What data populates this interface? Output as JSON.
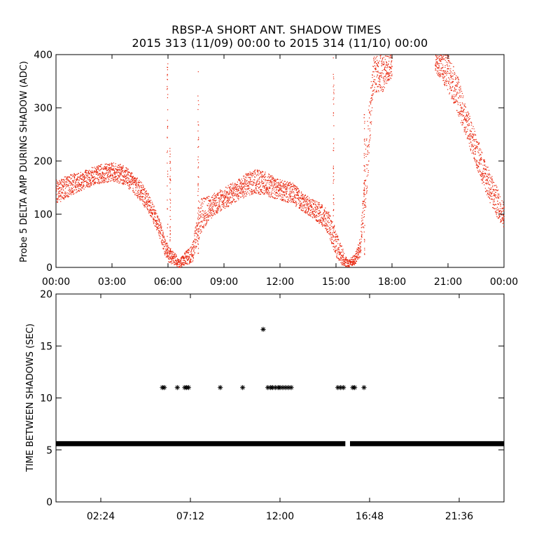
{
  "header": {
    "title": "RBSP-A SHORT ANT. SHADOW TIMES",
    "subtitle": "2015 313 (11/09) 00:00 to 2015 314 (11/10) 00:00"
  },
  "colors": {
    "top_points": "#e8230a",
    "bottom_points": "#000000",
    "axes": "#000000",
    "background": "#ffffff"
  },
  "chart_data": [
    {
      "type": "scatter",
      "ylabel": "Probe 5 DELTA AMP DURING SHADOW (ADC)",
      "xlim": [
        "00:00",
        "24:00"
      ],
      "ylim": [
        0,
        400
      ],
      "grid": false,
      "x_ticks": [
        "00:00",
        "03:00",
        "06:00",
        "09:00",
        "12:00",
        "15:00",
        "18:00",
        "21:00",
        "00:00"
      ],
      "y_ticks": [
        "0",
        "100",
        "200",
        "300",
        "400"
      ],
      "series": [
        {
          "color": "#e8230a",
          "band": [
            {
              "h": 0.0,
              "lo": 120,
              "hi": 165
            },
            {
              "h": 0.5,
              "lo": 130,
              "hi": 172
            },
            {
              "h": 1.0,
              "lo": 140,
              "hi": 178
            },
            {
              "h": 1.5,
              "lo": 148,
              "hi": 184
            },
            {
              "h": 2.0,
              "lo": 155,
              "hi": 190
            },
            {
              "h": 2.5,
              "lo": 160,
              "hi": 195
            },
            {
              "h": 3.0,
              "lo": 162,
              "hi": 198
            },
            {
              "h": 3.5,
              "lo": 158,
              "hi": 194
            },
            {
              "h": 4.0,
              "lo": 145,
              "hi": 182
            },
            {
              "h": 4.5,
              "lo": 125,
              "hi": 163
            },
            {
              "h": 5.0,
              "lo": 100,
              "hi": 135
            },
            {
              "h": 5.5,
              "lo": 60,
              "hi": 95
            },
            {
              "h": 5.8,
              "lo": 25,
              "hi": 60
            },
            {
              "h": 6.0,
              "lo": 10,
              "hi": 40
            },
            {
              "h": 6.3,
              "lo": 5,
              "hi": 30
            },
            {
              "h": 6.6,
              "lo": 0,
              "hi": 15
            },
            {
              "h": 6.9,
              "lo": 5,
              "hi": 30
            },
            {
              "h": 7.3,
              "lo": 10,
              "hi": 45
            },
            {
              "h": 7.7,
              "lo": 60,
              "hi": 130
            },
            {
              "h": 8.2,
              "lo": 90,
              "hi": 135
            },
            {
              "h": 8.7,
              "lo": 105,
              "hi": 145
            },
            {
              "h": 9.2,
              "lo": 115,
              "hi": 155
            },
            {
              "h": 9.7,
              "lo": 125,
              "hi": 165
            },
            {
              "h": 10.2,
              "lo": 135,
              "hi": 178
            },
            {
              "h": 10.7,
              "lo": 140,
              "hi": 185
            },
            {
              "h": 11.2,
              "lo": 135,
              "hi": 180
            },
            {
              "h": 11.7,
              "lo": 130,
              "hi": 170
            },
            {
              "h": 12.2,
              "lo": 125,
              "hi": 163
            },
            {
              "h": 12.7,
              "lo": 120,
              "hi": 160
            },
            {
              "h": 13.2,
              "lo": 105,
              "hi": 140
            },
            {
              "h": 13.7,
              "lo": 95,
              "hi": 130
            },
            {
              "h": 14.2,
              "lo": 80,
              "hi": 120
            },
            {
              "h": 14.6,
              "lo": 60,
              "hi": 105
            },
            {
              "h": 15.0,
              "lo": 20,
              "hi": 70
            },
            {
              "h": 15.3,
              "lo": 5,
              "hi": 40
            },
            {
              "h": 15.6,
              "lo": 0,
              "hi": 15
            },
            {
              "h": 16.0,
              "lo": 5,
              "hi": 25
            },
            {
              "h": 16.3,
              "lo": 20,
              "hi": 60
            },
            {
              "h": 16.6,
              "lo": 120,
              "hi": 250
            },
            {
              "h": 17.0,
              "lo": 330,
              "hi": 400
            },
            {
              "h": 17.5,
              "lo": 330,
              "hi": 400
            },
            {
              "h": 18.0,
              "lo": 360,
              "hi": 400
            },
            {
              "h": 20.3,
              "lo": 370,
              "hi": 400
            },
            {
              "h": 21.0,
              "lo": 330,
              "hi": 400
            },
            {
              "h": 21.5,
              "lo": 290,
              "hi": 360
            },
            {
              "h": 22.0,
              "lo": 240,
              "hi": 300
            },
            {
              "h": 22.5,
              "lo": 190,
              "hi": 250
            },
            {
              "h": 23.0,
              "lo": 140,
              "hi": 200
            },
            {
              "h": 23.5,
              "lo": 100,
              "hi": 160
            },
            {
              "h": 24.0,
              "lo": 75,
              "hi": 120
            }
          ],
          "spikes": [
            {
              "h": 5.95,
              "lo": 20,
              "hi": 400
            },
            {
              "h": 6.1,
              "lo": 20,
              "hi": 230
            },
            {
              "h": 7.6,
              "lo": 20,
              "hi": 370
            },
            {
              "h": 14.85,
              "lo": 20,
              "hi": 400
            },
            {
              "h": 16.5,
              "lo": 20,
              "hi": 300
            }
          ]
        }
      ]
    },
    {
      "type": "scatter",
      "ylabel": "TIME BETWEEN SHADOWS (SEC)",
      "xlim": [
        "00:00",
        "24:00"
      ],
      "ylim": [
        0,
        20
      ],
      "grid": false,
      "x_ticks": [
        "02:24",
        "07:12",
        "12:00",
        "16:48",
        "21:36"
      ],
      "y_ticks": [
        "0",
        "5",
        "10",
        "15",
        "20"
      ],
      "series": [
        {
          "marker": "asterisk",
          "color": "#000000",
          "baseline": {
            "y": 5.6,
            "x_start": 0.0,
            "x_end": 15.5,
            "x_resume": 15.75,
            "x_final": 24.0
          },
          "points": [
            {
              "x": 5.7,
              "y": 11.0
            },
            {
              "x": 5.8,
              "y": 11.0
            },
            {
              "x": 6.5,
              "y": 11.0
            },
            {
              "x": 6.9,
              "y": 11.0
            },
            {
              "x": 7.0,
              "y": 11.0
            },
            {
              "x": 7.1,
              "y": 11.0
            },
            {
              "x": 8.8,
              "y": 11.0
            },
            {
              "x": 10.0,
              "y": 11.0
            },
            {
              "x": 11.1,
              "y": 16.6
            },
            {
              "x": 11.35,
              "y": 11.0
            },
            {
              "x": 11.5,
              "y": 11.0
            },
            {
              "x": 11.6,
              "y": 11.0
            },
            {
              "x": 11.75,
              "y": 11.0
            },
            {
              "x": 11.9,
              "y": 11.0
            },
            {
              "x": 12.0,
              "y": 11.0
            },
            {
              "x": 12.15,
              "y": 11.0
            },
            {
              "x": 12.3,
              "y": 11.0
            },
            {
              "x": 12.45,
              "y": 11.0
            },
            {
              "x": 12.6,
              "y": 11.0
            },
            {
              "x": 15.1,
              "y": 11.0
            },
            {
              "x": 15.25,
              "y": 11.0
            },
            {
              "x": 15.4,
              "y": 11.0
            },
            {
              "x": 15.9,
              "y": 11.0
            },
            {
              "x": 16.0,
              "y": 11.0
            },
            {
              "x": 16.5,
              "y": 11.0
            }
          ]
        }
      ]
    }
  ]
}
